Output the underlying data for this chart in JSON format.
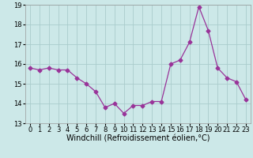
{
  "x": [
    0,
    1,
    2,
    3,
    4,
    5,
    6,
    7,
    8,
    9,
    10,
    11,
    12,
    13,
    14,
    15,
    16,
    17,
    18,
    19,
    20,
    21,
    22,
    23
  ],
  "y": [
    15.8,
    15.7,
    15.8,
    15.7,
    15.7,
    15.3,
    15.0,
    14.6,
    13.8,
    14.0,
    13.5,
    13.9,
    13.9,
    14.1,
    14.1,
    16.0,
    16.2,
    17.1,
    18.9,
    17.7,
    15.8,
    15.3,
    15.1,
    14.2
  ],
  "line_color": "#993399",
  "marker": "D",
  "markersize": 2.5,
  "linewidth": 0.9,
  "bg_color": "#cce8e8",
  "grid_color": "#aacccc",
  "xlabel": "Windchill (Refroidissement éolien,°C)",
  "xlabel_fontsize": 7,
  "tick_fontsize": 6,
  "ylim": [
    13,
    19
  ],
  "xlim": [
    -0.5,
    23.5
  ],
  "yticks": [
    13,
    14,
    15,
    16,
    17,
    18,
    19
  ],
  "xticks": [
    0,
    1,
    2,
    3,
    4,
    5,
    6,
    7,
    8,
    9,
    10,
    11,
    12,
    13,
    14,
    15,
    16,
    17,
    18,
    19,
    20,
    21,
    22,
    23
  ]
}
